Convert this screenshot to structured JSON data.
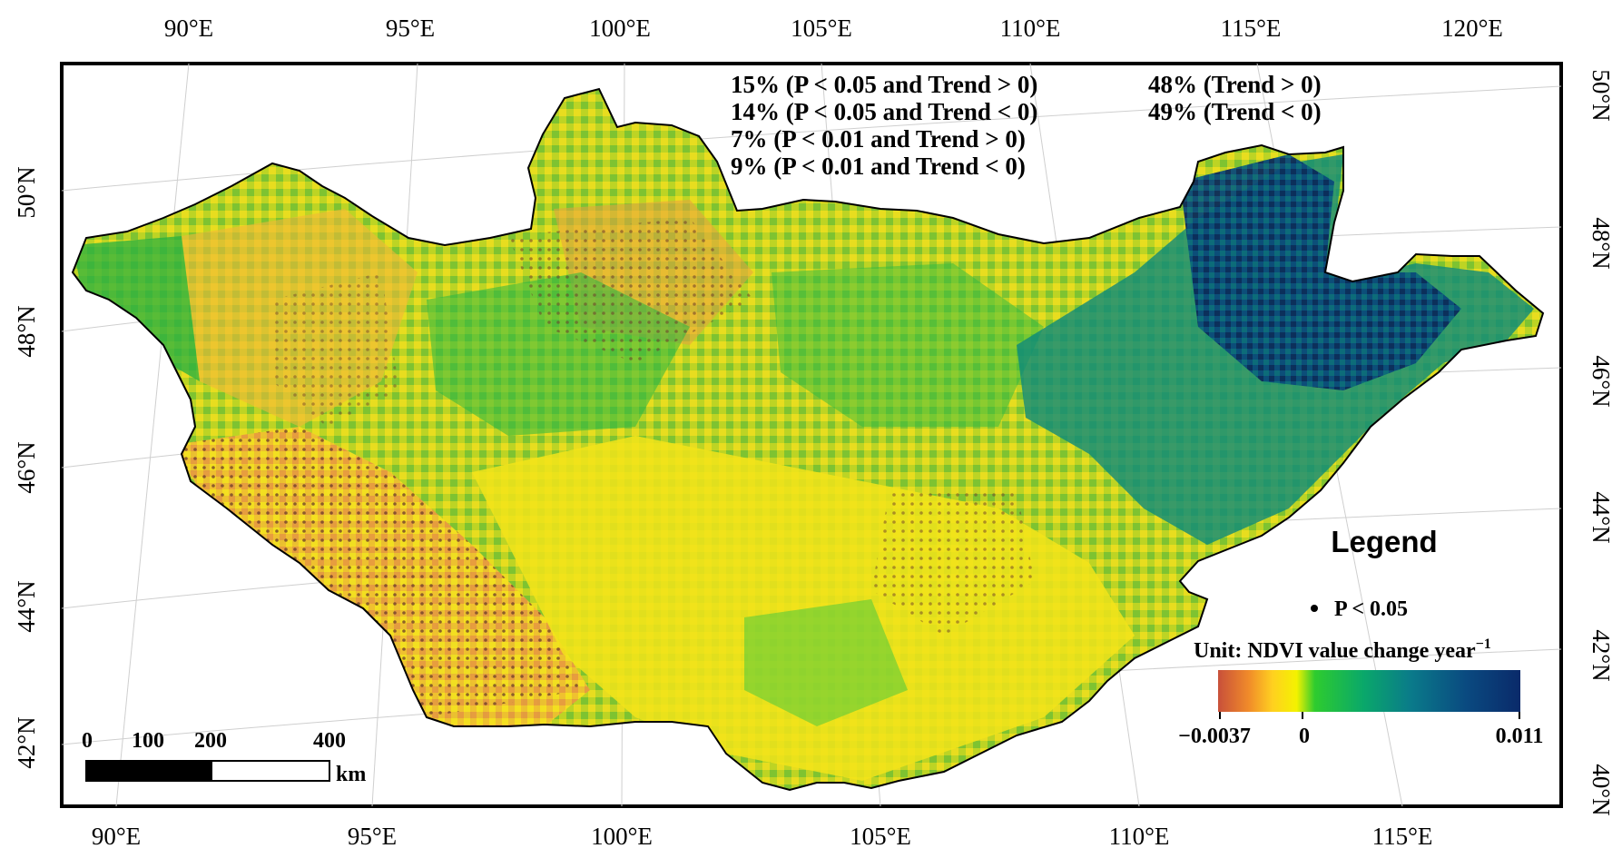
{
  "map": {
    "region": "Mongolia NDVI trend map",
    "colors": {
      "frame": "#000000",
      "graticule": "#cfcfcf",
      "significance_dot": "#6b3a2a"
    }
  },
  "graticule": {
    "top_lon_labels": [
      "90°E",
      "95°E",
      "100°E",
      "105°E",
      "110°E",
      "115°E",
      "120°E"
    ],
    "bottom_lon_labels": [
      "90°E",
      "95°E",
      "100°E",
      "105°E",
      "110°E",
      "115°E"
    ],
    "left_lat_labels": [
      "50°N",
      "48°N",
      "46°N",
      "44°N",
      "42°N"
    ],
    "right_lat_labels": [
      "50°N",
      "48°N",
      "46°N",
      "44°N",
      "42°N",
      "40°N"
    ]
  },
  "stats": {
    "left": [
      "15% (P < 0.05 and Trend > 0)",
      "14% (P < 0.05 and Trend < 0)",
      "7% (P < 0.01 and Trend > 0)",
      "9% (P < 0.01 and Trend < 0)"
    ],
    "right": [
      "48% (Trend > 0)",
      "49% (Trend < 0)"
    ]
  },
  "legend": {
    "title": "Legend",
    "dot_label": "P < 0.05",
    "unit_label": "Unit: NDVI value change year",
    "unit_superscript": "−1",
    "colorbar": {
      "min_label": "−0.0037",
      "mid_label": "0",
      "max_label": "0.011",
      "stops": [
        "#c8503a",
        "#f08a2a",
        "#ffd020",
        "#f4f200",
        "#2ecc2e",
        "#0aa86a",
        "#0a7a8a",
        "#0a4a80",
        "#0a2a6a"
      ]
    }
  },
  "scale_bar": {
    "labels": [
      "0",
      "100",
      "200",
      "400"
    ],
    "unit": "km"
  }
}
